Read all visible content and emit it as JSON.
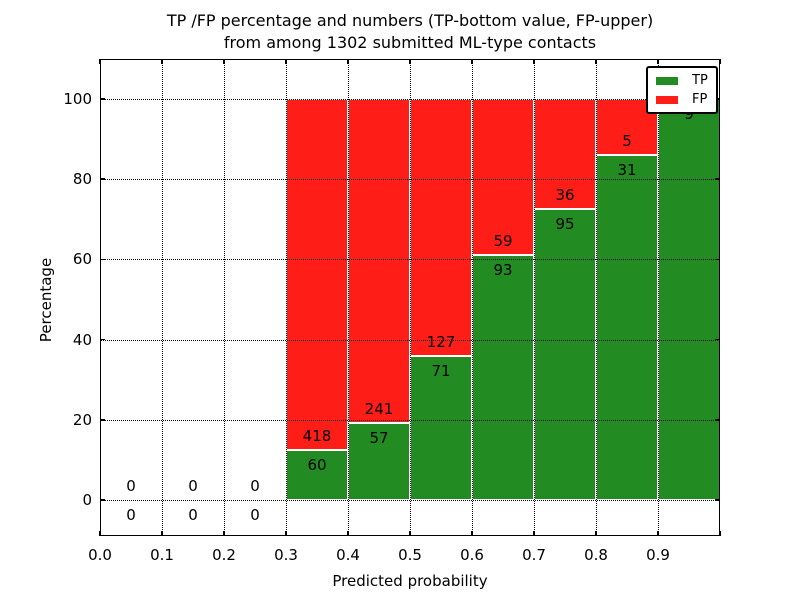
{
  "figure": {
    "background": "#ffffff",
    "title_line1": "TP /FP percentage and numbers (TP-bottom value, FP-upper)",
    "title_line2": "from among 1302 submitted ML-type contacts"
  },
  "chart_data": {
    "type": "bar",
    "stacked": true,
    "normalized_to_percent": true,
    "title": "TP /FP percentage and numbers (TP-bottom value, FP-upper) from among 1302 submitted ML-type contacts",
    "total_contacts": 1302,
    "xlabel": "Predicted probability",
    "ylabel": "Percentage",
    "x_ticks": [
      "0.0",
      "0.1",
      "0.2",
      "0.3",
      "0.4",
      "0.5",
      "0.6",
      "0.7",
      "0.8",
      "0.9"
    ],
    "y_ticks": [
      0,
      20,
      40,
      60,
      80,
      100
    ],
    "xlim": [
      0.0,
      1.0
    ],
    "ylim": [
      -9,
      110
    ],
    "grid": "dotted",
    "legend_position": "upper right",
    "categories": [
      "0.0-0.1",
      "0.1-0.2",
      "0.2-0.3",
      "0.3-0.4",
      "0.4-0.5",
      "0.5-0.6",
      "0.6-0.7",
      "0.7-0.8",
      "0.8-0.9",
      "0.9-1.0"
    ],
    "series": [
      {
        "name": "TP",
        "color": "#228B22",
        "values": [
          0,
          0,
          0,
          60,
          57,
          71,
          93,
          95,
          31,
          9
        ]
      },
      {
        "name": "FP",
        "color": "#FF1D17",
        "values": [
          0,
          0,
          0,
          418,
          241,
          127,
          59,
          36,
          5,
          0
        ]
      }
    ],
    "legend": [
      {
        "label": "TP",
        "color": "#228B22"
      },
      {
        "label": "FP",
        "color": "#FF1D17"
      }
    ]
  }
}
